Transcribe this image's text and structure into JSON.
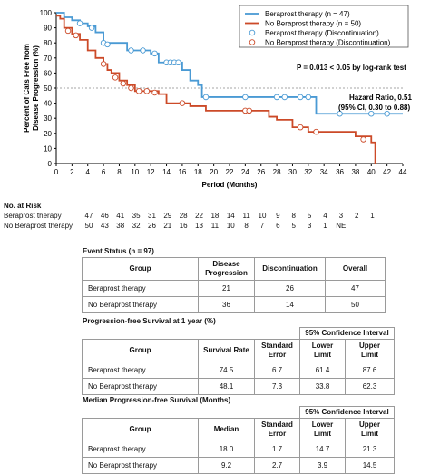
{
  "chart_data": {
    "type": "line",
    "subtype": "kaplan-meier",
    "xlabel": "Period (Months)",
    "ylabel": "Percent of Cats Free from Disease Progression (%)",
    "ylabel_lines": [
      "Percent of Cats Free from",
      "Disease Progression (%)"
    ],
    "xlim": [
      0,
      44
    ],
    "ylim": [
      0,
      100
    ],
    "xticks": [
      0,
      2,
      4,
      6,
      8,
      10,
      12,
      14,
      16,
      18,
      20,
      22,
      24,
      26,
      28,
      30,
      32,
      34,
      36,
      38,
      40,
      42,
      44
    ],
    "yticks": [
      0,
      10,
      20,
      30,
      40,
      50,
      60,
      70,
      80,
      90,
      100
    ],
    "reference_line_y": 50,
    "legend_position": "top-right",
    "legend": [
      "Beraprost therapy (n = 47)",
      "No Beraprost therapy (n = 50)",
      "Beraprost therapy (Discontinuation)",
      "No Beraprost therapy (Discontinuation)"
    ],
    "annotations": {
      "pvalue": "P = 0.013 < 0.05 by log-rank test",
      "hazard_line1": "Hazard Ratio, 0.51",
      "hazard_line2": "(95% CI, 0.30 to 0.88)"
    },
    "series": [
      {
        "name": "Beraprost therapy (n = 47)",
        "color": "#4a9ad4",
        "steps": [
          [
            0,
            100
          ],
          [
            1,
            97
          ],
          [
            2,
            95
          ],
          [
            3,
            93
          ],
          [
            4,
            91
          ],
          [
            5,
            87
          ],
          [
            6,
            80
          ],
          [
            8,
            80
          ],
          [
            9,
            75
          ],
          [
            12,
            73
          ],
          [
            13,
            67
          ],
          [
            16,
            62
          ],
          [
            17,
            55
          ],
          [
            18,
            52
          ],
          [
            18.5,
            44
          ],
          [
            32.5,
            44
          ],
          [
            33,
            33
          ],
          [
            44,
            33
          ]
        ],
        "censored": [
          [
            3,
            93
          ],
          [
            4.5,
            90
          ],
          [
            6,
            80
          ],
          [
            6.5,
            79
          ],
          [
            9.5,
            75
          ],
          [
            11,
            75
          ],
          [
            12.5,
            73
          ],
          [
            14,
            67
          ],
          [
            14.5,
            67
          ],
          [
            15,
            67
          ],
          [
            15.5,
            67
          ],
          [
            19,
            44
          ],
          [
            24,
            44
          ],
          [
            28,
            44
          ],
          [
            29,
            44
          ],
          [
            31,
            44
          ],
          [
            32,
            44
          ],
          [
            36,
            33
          ],
          [
            40,
            33
          ],
          [
            42,
            33
          ]
        ]
      },
      {
        "name": "No Beraprost therapy (n = 50)",
        "color": "#cc4a28",
        "steps": [
          [
            0,
            98
          ],
          [
            0.5,
            96
          ],
          [
            1,
            90
          ],
          [
            2,
            86
          ],
          [
            3,
            82
          ],
          [
            4,
            75
          ],
          [
            5,
            70
          ],
          [
            6,
            66
          ],
          [
            6.5,
            62
          ],
          [
            7,
            60
          ],
          [
            8,
            55
          ],
          [
            9,
            52
          ],
          [
            10,
            48
          ],
          [
            13,
            46
          ],
          [
            14,
            40
          ],
          [
            17,
            38
          ],
          [
            19,
            35
          ],
          [
            26,
            35
          ],
          [
            27,
            31
          ],
          [
            28,
            29
          ],
          [
            30,
            24
          ],
          [
            32,
            21
          ],
          [
            38,
            18
          ],
          [
            40,
            14
          ],
          [
            40.5,
            0
          ]
        ],
        "censored": [
          [
            1.5,
            88
          ],
          [
            2.5,
            85
          ],
          [
            6,
            66
          ],
          [
            7.5,
            57
          ],
          [
            8.5,
            53
          ],
          [
            9.5,
            50
          ],
          [
            10.5,
            48
          ],
          [
            11.5,
            48
          ],
          [
            12.5,
            47
          ],
          [
            16,
            40
          ],
          [
            24,
            35
          ],
          [
            24.5,
            35
          ],
          [
            31,
            24
          ],
          [
            33,
            21
          ],
          [
            39,
            16
          ]
        ]
      }
    ]
  },
  "risk": {
    "title": "No. at Risk",
    "times": [
      0,
      2,
      4,
      6,
      8,
      10,
      12,
      14,
      16,
      18,
      20,
      22,
      24,
      26,
      28,
      30,
      32,
      34,
      36,
      38,
      40,
      42
    ],
    "rows": [
      {
        "label": "Beraprost therapy",
        "values": [
          "47",
          "46",
          "41",
          "35",
          "31",
          "29",
          "28",
          "22",
          "18",
          "14",
          "11",
          "10",
          "9",
          "8",
          "5",
          "4",
          "3",
          "2",
          "1"
        ]
      },
      {
        "label": "No Beraprost therapy",
        "values": [
          "50",
          "43",
          "38",
          "32",
          "26",
          "21",
          "16",
          "13",
          "11",
          "10",
          "8",
          "7",
          "6",
          "5",
          "3",
          "1",
          "NE"
        ]
      }
    ]
  },
  "event_status": {
    "title": "Event Status (n = 97)",
    "headers": [
      "Group",
      "Disease Progression",
      "Discontinuation",
      "Overall"
    ],
    "header_lines": [
      [
        "Group"
      ],
      [
        "Disease",
        "Progression"
      ],
      [
        "Discontinuation"
      ],
      [
        "Overall"
      ]
    ],
    "rows": [
      [
        "Beraprost therapy",
        "21",
        "26",
        "47"
      ],
      [
        "No Beraprost therapy",
        "36",
        "14",
        "50"
      ]
    ]
  },
  "pfs_1yr": {
    "title": "Progression-free Survival at 1 year (%)",
    "ci_header": "95% Confidence Interval",
    "header_lines": [
      [
        "Group"
      ],
      [
        "Survival Rate"
      ],
      [
        "Standard",
        "Error"
      ],
      [
        "Lower",
        "Limit"
      ],
      [
        "Upper",
        "Limit"
      ]
    ],
    "rows": [
      [
        "Beraprost therapy",
        "74.5",
        "6.7",
        "61.4",
        "87.6"
      ],
      [
        "No Beraprost therapy",
        "48.1",
        "7.3",
        "33.8",
        "62.3"
      ]
    ]
  },
  "median_pfs": {
    "title": "Median Progression-free Survival (Months)",
    "ci_header": "95% Confidence Interval",
    "header_lines": [
      [
        "Group"
      ],
      [
        "Median"
      ],
      [
        "Standard",
        "Error"
      ],
      [
        "Lower",
        "Limit"
      ],
      [
        "Upper",
        "Limit"
      ]
    ],
    "rows": [
      [
        "Beraprost therapy",
        "18.0",
        "1.7",
        "14.7",
        "21.3"
      ],
      [
        "No Beraprost therapy",
        "9.2",
        "2.7",
        "3.9",
        "14.5"
      ]
    ]
  }
}
